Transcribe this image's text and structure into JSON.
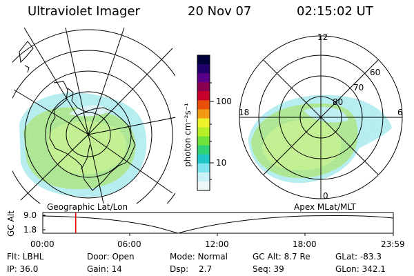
{
  "header": {
    "title": "Ultraviolet Imager",
    "date": "20 Nov 07",
    "time": "02:15:02 UT"
  },
  "colorbar": {
    "unit_label": "photon cm⁻²s⁻¹",
    "ticks": [
      "100",
      "10"
    ],
    "colors": [
      "#00003a",
      "#22006a",
      "#5a0088",
      "#8a0050",
      "#c8002a",
      "#e8500a",
      "#f29a14",
      "#eef22a",
      "#b6ef28",
      "#6ee23a",
      "#2fd276",
      "#21c7c6",
      "#7fe3ef",
      "#c9f2f8",
      "#eef6f7"
    ]
  },
  "left_panel": {
    "label": "Geographic Lat/Lon"
  },
  "right_panel": {
    "label": "Apex  MLat/MLT",
    "mlt_labels": [
      "12",
      "18",
      "6",
      "0"
    ],
    "mlat_labels": [
      "60",
      "70",
      "80"
    ]
  },
  "altitude_strip": {
    "axis_label": "GC Alt",
    "y_ticks": [
      "9.0",
      "1.8"
    ],
    "x_ticks": [
      "00:00",
      "06:00",
      "12:00",
      "18:00",
      "23:59"
    ],
    "current_time_fraction": 0.094,
    "marker_color": "#e00000"
  },
  "footer": {
    "row1": [
      "Flt: LBHL",
      "Door: Open",
      "Mode: Normal",
      "GC Alt: 8.7 Re",
      "GLat: -83.3"
    ],
    "row2": [
      "IP: 36.0",
      "Gain: 14",
      "Dsp:",
      "2.7",
      "Seq: 39",
      "GLon: 342.1"
    ]
  }
}
